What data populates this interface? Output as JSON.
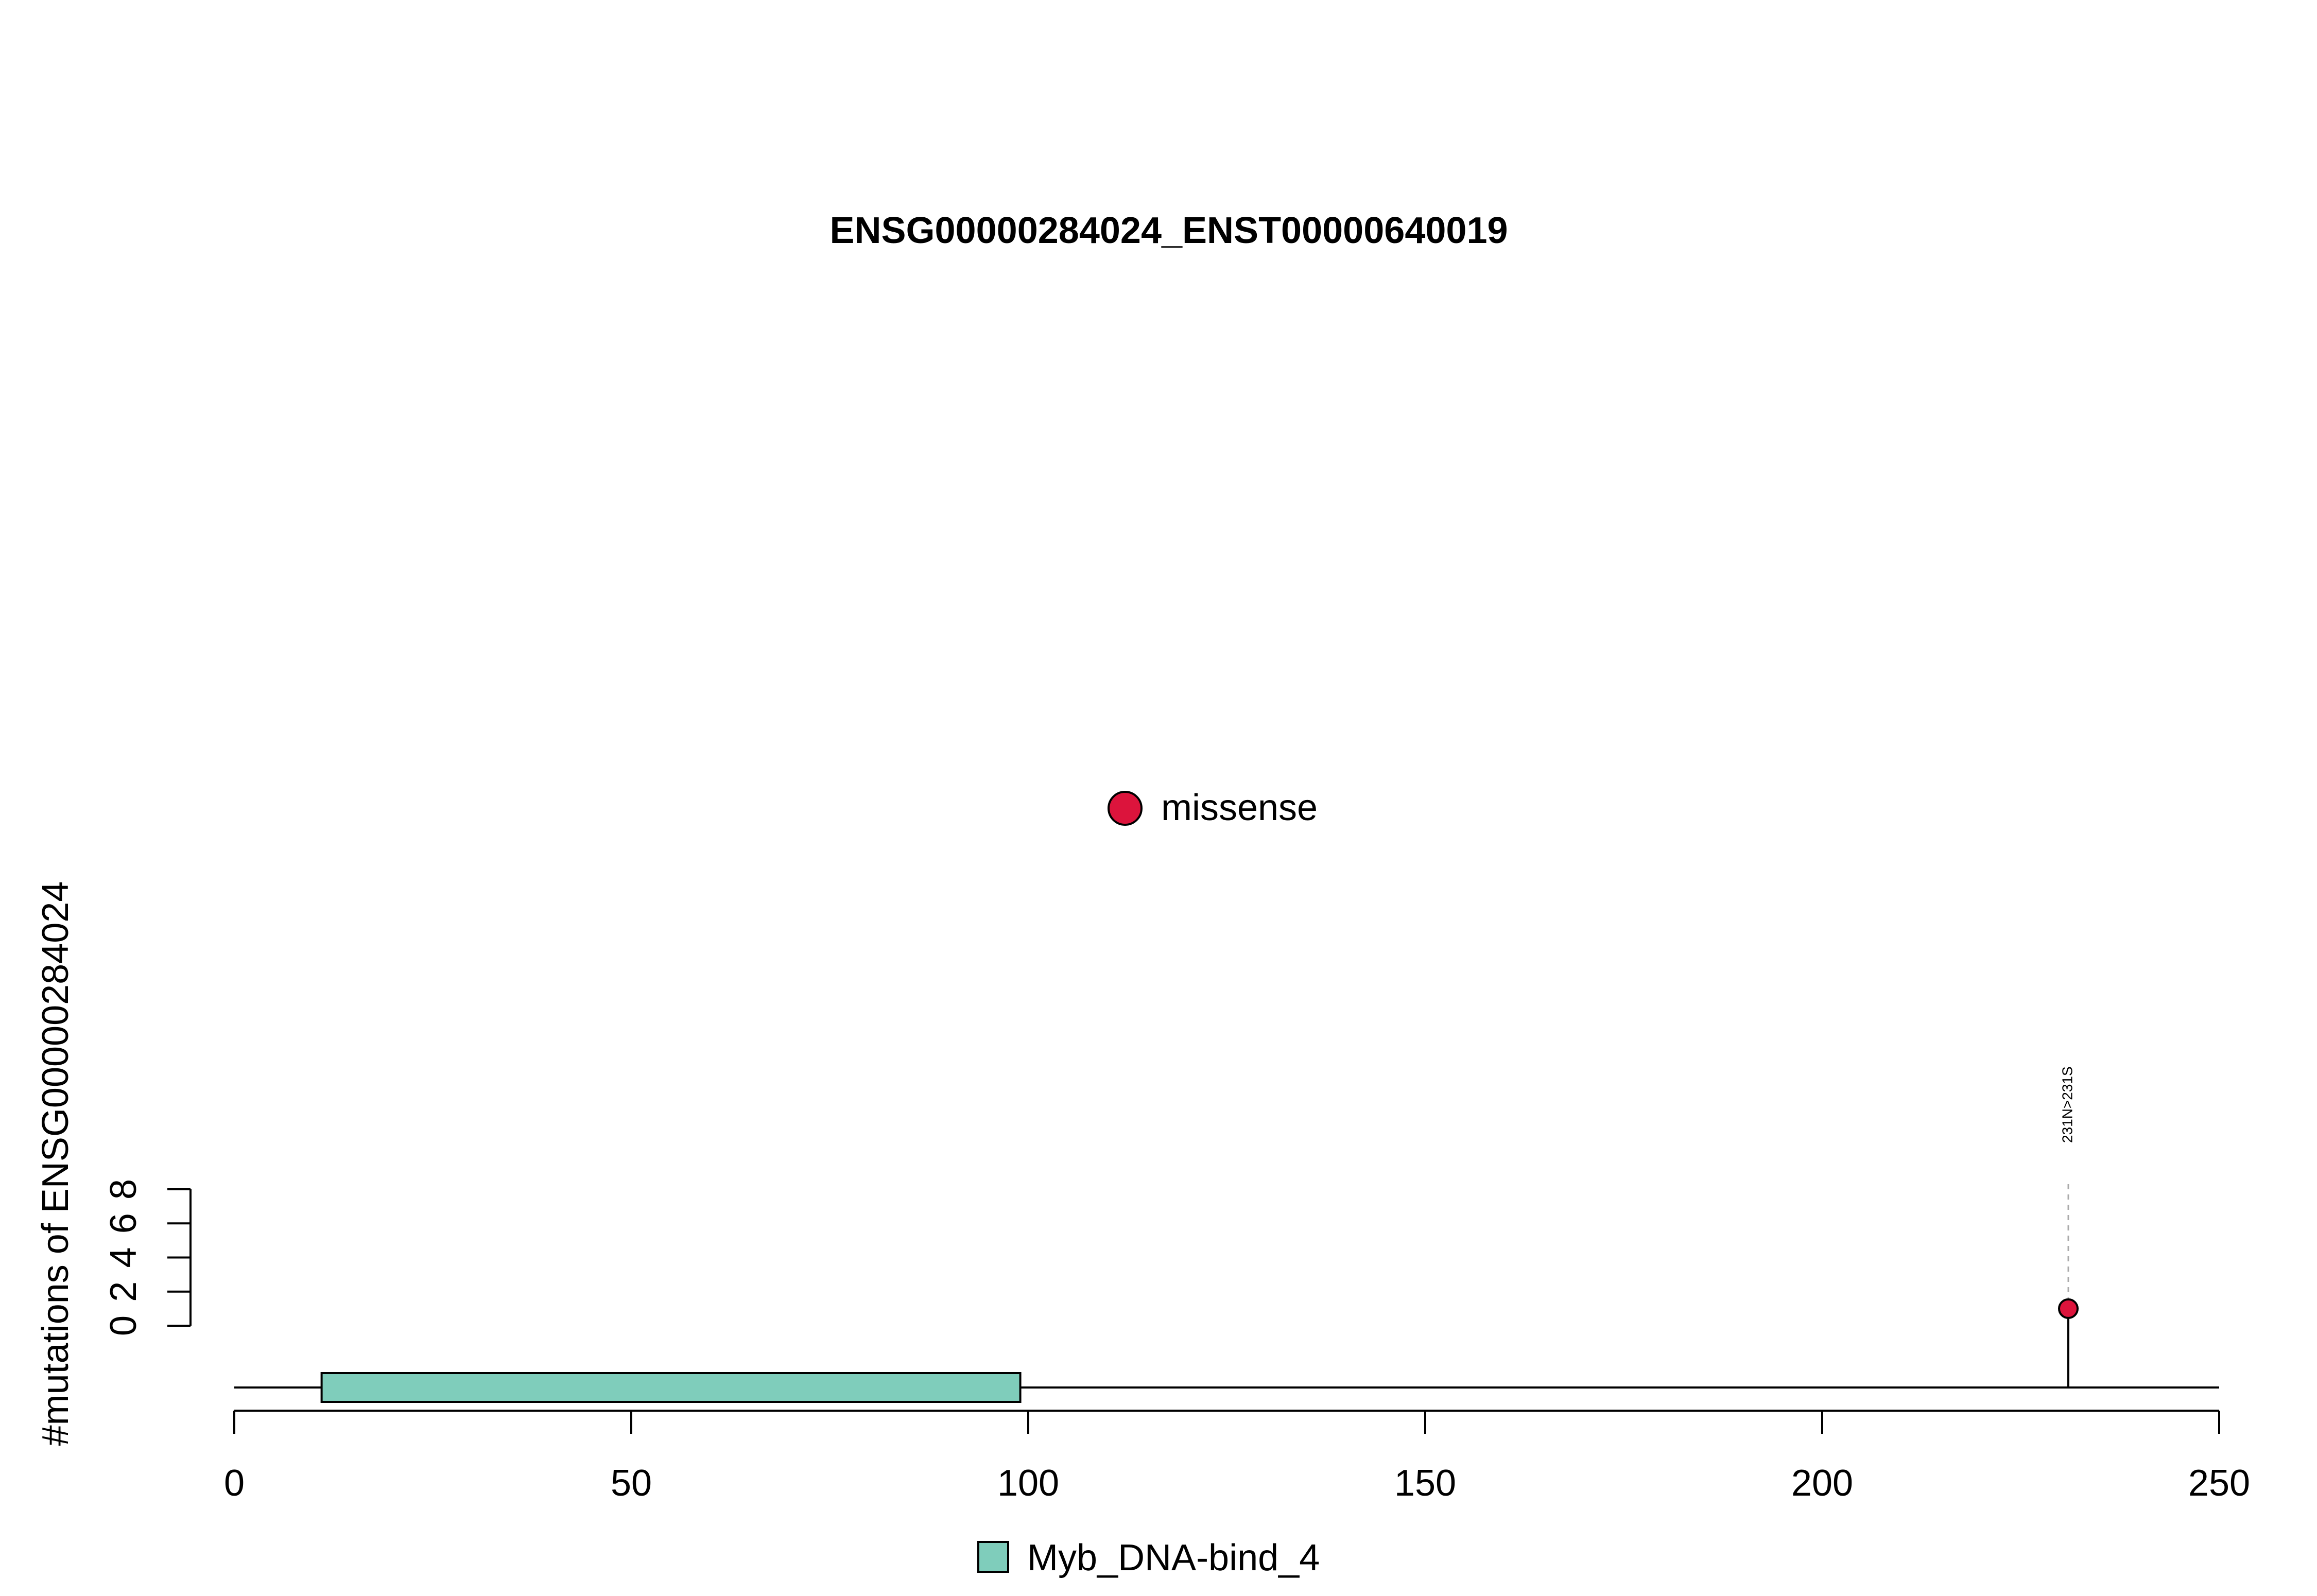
{
  "chart_data": {
    "type": "lollipop",
    "title": "ENSG00000284024_ENST00000640019",
    "ylabel": "#mutations of ENSG00000284024",
    "xlabel": "",
    "xlim": [
      0,
      250
    ],
    "ylim": [
      0,
      8
    ],
    "x_ticks": [
      "0",
      "50",
      "100",
      "150",
      "200",
      "250"
    ],
    "y_ticks": [
      "0",
      "2",
      "4",
      "6",
      "8"
    ],
    "legend": {
      "mutation_types": [
        {
          "label": "missense",
          "color": "#DC143C"
        }
      ],
      "domains": [
        {
          "label": "Myb_DNA-bind_4",
          "color": "#7FCDBB"
        }
      ]
    },
    "domains": [
      {
        "name": "Myb_DNA-bind_4",
        "start": 11,
        "end": 99,
        "color": "#7FCDBB"
      }
    ],
    "mutations": [
      {
        "position": 231,
        "count": 1,
        "type": "missense",
        "label": "231N>231S",
        "color": "#DC143C"
      }
    ],
    "protein_length": 250
  }
}
